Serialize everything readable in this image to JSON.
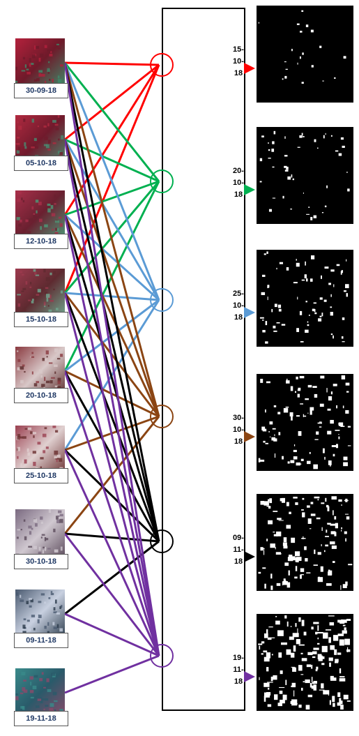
{
  "inputs": [
    {
      "label": "30-09-18"
    },
    {
      "label": "05-10-18"
    },
    {
      "label": "12-10-18"
    },
    {
      "label": "15-10-18"
    },
    {
      "label": "20-10-18"
    },
    {
      "label": "25-10-18"
    },
    {
      "label": "30-10-18"
    },
    {
      "label": "09-11-18"
    },
    {
      "label": "19-11-18"
    }
  ],
  "outputs": [
    {
      "label": "15-10-18",
      "color": "#ff0000"
    },
    {
      "label": "20-10-18",
      "color": "#00b050"
    },
    {
      "label": "25-10-18",
      "color": "#5b9bd5"
    },
    {
      "label": "30-10-18",
      "color": "#8b4513"
    },
    {
      "label": "09-11-18",
      "color": "#000000"
    },
    {
      "label": "19-11-18",
      "color": "#7030a0"
    }
  ]
}
